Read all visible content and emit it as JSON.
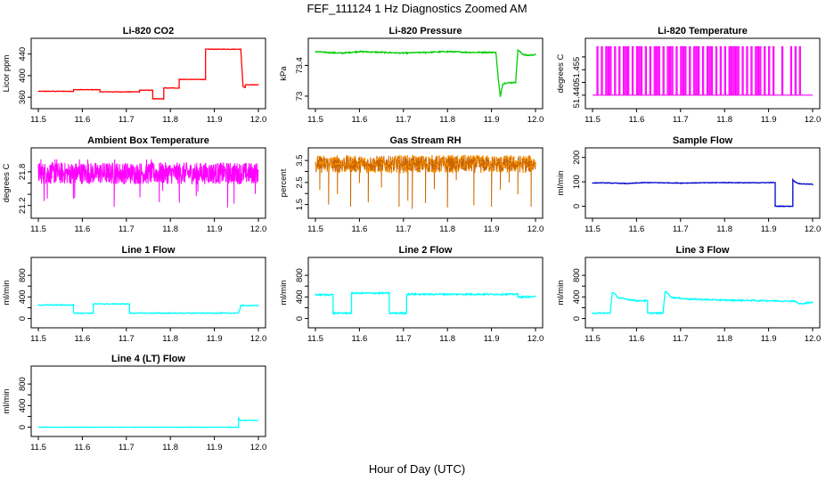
{
  "figure": {
    "title": "FEF_111124  1 Hz Diagnostics Zoomed AM",
    "xlabel": "Hour of Day (UTC)"
  },
  "chart_data": [
    {
      "id": "co2",
      "type": "line",
      "title": "Li-820 CO2",
      "ylabel": "Licor ppm",
      "color": "#ff0000",
      "xlim": [
        11.5,
        12.0
      ],
      "ylim": [
        352,
        456
      ],
      "yticks": [
        360,
        400,
        440
      ],
      "xticks": [
        11.5,
        11.6,
        11.7,
        11.8,
        11.9,
        12.0
      ],
      "noise": 0.5,
      "series": [
        {
          "name": "CO2",
          "x": [
            11.5,
            11.58,
            11.58,
            11.64,
            11.64,
            11.73,
            11.73,
            11.76,
            11.76,
            11.785,
            11.785,
            11.82,
            11.82,
            11.88,
            11.88,
            11.96,
            11.96,
            11.965,
            11.97,
            11.97,
            12.0
          ],
          "y": [
            371,
            371,
            374,
            374,
            370,
            370,
            373,
            373,
            357,
            357,
            377,
            377,
            393,
            393,
            449,
            449,
            449,
            380,
            378,
            383,
            383
          ]
        }
      ]
    },
    {
      "id": "pressure",
      "type": "line",
      "title": "Li-820 Pressure",
      "ylabel": "kPa",
      "color": "#00cc00",
      "xlim": [
        11.5,
        12.0
      ],
      "ylim": [
        72.93,
        73.66
      ],
      "yticks": [
        73.0,
        73.4
      ],
      "xticks": [
        11.5,
        11.6,
        11.7,
        11.8,
        11.9,
        12.0
      ],
      "noise": 0.008,
      "series": [
        {
          "name": "Pressure",
          "x": [
            11.5,
            11.52,
            11.56,
            11.6,
            11.65,
            11.7,
            11.75,
            11.8,
            11.85,
            11.9,
            11.91,
            11.915,
            11.92,
            11.925,
            11.93,
            11.955,
            11.96,
            11.97,
            11.98,
            12.0
          ],
          "y": [
            73.58,
            73.57,
            73.56,
            73.58,
            73.57,
            73.56,
            73.57,
            73.58,
            73.57,
            73.57,
            73.57,
            73.25,
            72.99,
            73.15,
            73.17,
            73.18,
            73.6,
            73.55,
            73.53,
            73.54
          ]
        }
      ]
    },
    {
      "id": "li820temp",
      "type": "line",
      "title": "Li-820 Temperature",
      "ylabel": "degrees C",
      "color": "#ff00ff",
      "xlim": [
        11.5,
        12.0
      ],
      "ylim": [
        51.4375,
        51.4595
      ],
      "yticks": [
        51.44,
        51.445,
        51.45,
        51.455
      ],
      "yticklabels": [
        "51.440",
        "",
        "51.455",
        ""
      ],
      "xticks": [
        11.5,
        11.6,
        11.7,
        11.8,
        11.9,
        12.0
      ],
      "series": [
        {
          "name": "Temperature",
          "low": 51.44,
          "high": 51.459,
          "spikes": [
            11.51,
            11.52,
            11.53,
            11.535,
            11.54,
            11.55,
            11.56,
            11.57,
            11.575,
            11.58,
            11.59,
            11.6,
            11.605,
            11.61,
            11.62,
            11.63,
            11.64,
            11.645,
            11.65,
            11.66,
            11.67,
            11.675,
            11.68,
            11.69,
            11.7,
            11.705,
            11.71,
            11.72,
            11.73,
            11.735,
            11.74,
            11.75,
            11.76,
            11.765,
            11.77,
            11.78,
            11.79,
            11.8,
            11.81,
            11.815,
            11.82,
            11.825,
            11.83,
            11.84,
            11.85,
            11.86,
            11.87,
            11.875,
            11.88,
            11.89,
            11.9,
            11.91,
            11.93,
            11.95,
            11.96,
            11.97
          ]
        }
      ]
    },
    {
      "id": "ambient",
      "type": "line",
      "title": "Ambient Box Temperature",
      "ylabel": "degrees C",
      "color": "#ff00ff",
      "xlim": [
        11.5,
        12.0
      ],
      "ylim": [
        21.1,
        22.1
      ],
      "yticks": [
        21.2,
        21.4,
        21.6,
        21.8
      ],
      "yticklabels": [
        "21.2",
        "",
        "",
        "21.8"
      ],
      "xticks": [
        11.5,
        11.6,
        11.7,
        11.8,
        11.9,
        12.0
      ],
      "series": [
        {
          "name": "Ambient",
          "base": 21.77,
          "band": [
            21.58,
            21.97
          ],
          "extremes": [
            21.15,
            22.02
          ]
        }
      ]
    },
    {
      "id": "rh",
      "type": "line",
      "title": "Gas Stream RH",
      "ylabel": "percent",
      "color": "#ff9900",
      "xlim": [
        11.5,
        12.0
      ],
      "ylim": [
        1.2,
        3.75
      ],
      "yticks": [
        1.5,
        2.0,
        2.5,
        3.0,
        3.5
      ],
      "yticklabels": [
        "1.5",
        "",
        "2.5",
        "",
        "3.5"
      ],
      "xticks": [
        11.5,
        11.6,
        11.7,
        11.8,
        11.9,
        12.0
      ],
      "series": [
        {
          "name": "RH",
          "base": 3.35,
          "band": [
            2.95,
            3.72
          ],
          "dips": [
            [
              11.51,
              2.2
            ],
            [
              11.53,
              1.5
            ],
            [
              11.55,
              2.0
            ],
            [
              11.58,
              1.4
            ],
            [
              11.6,
              2.5
            ],
            [
              11.62,
              1.6
            ],
            [
              11.65,
              2.3
            ],
            [
              11.69,
              1.4
            ],
            [
              11.71,
              1.7
            ],
            [
              11.72,
              1.3
            ],
            [
              11.75,
              1.6
            ],
            [
              11.77,
              2.2
            ],
            [
              11.8,
              1.4
            ],
            [
              11.82,
              2.6
            ],
            [
              11.86,
              1.5
            ],
            [
              11.9,
              1.4
            ],
            [
              11.92,
              2.2
            ],
            [
              11.94,
              2.5
            ],
            [
              11.96,
              2.0
            ],
            [
              11.99,
              1.4
            ]
          ]
        }
      ]
    },
    {
      "id": "sample",
      "type": "line",
      "title": "Sample Flow",
      "ylabel": "ml/min",
      "color": "#0000cc",
      "xlim": [
        11.5,
        12.0
      ],
      "ylim": [
        -20,
        210
      ],
      "yticks": [
        0,
        100,
        200
      ],
      "xticks": [
        11.5,
        11.6,
        11.7,
        11.8,
        11.9,
        12.0
      ],
      "noise": 1.2,
      "series": [
        {
          "name": "Sample",
          "x": [
            11.5,
            11.52,
            11.58,
            11.62,
            11.7,
            11.8,
            11.85,
            11.915,
            11.915,
            11.955,
            11.955,
            11.96,
            11.97,
            12.0
          ],
          "y": [
            95,
            96,
            93,
            97,
            95,
            97,
            96,
            97,
            0,
            0,
            108,
            100,
            92,
            90
          ]
        }
      ]
    },
    {
      "id": "line1",
      "type": "line",
      "title": "Line 1 Flow",
      "ylabel": "ml/min",
      "color": "#00ffff",
      "xlim": [
        11.5,
        12.0
      ],
      "ylim": [
        -40,
        1000
      ],
      "yticks": [
        0,
        200,
        400,
        600,
        800
      ],
      "yticklabels": [
        "0",
        "",
        "400",
        "",
        "800"
      ],
      "xticks": [
        11.5,
        11.6,
        11.7,
        11.8,
        11.9,
        12.0
      ],
      "noise": 8,
      "series": [
        {
          "name": "Line 1",
          "x": [
            11.5,
            11.58,
            11.58,
            11.625,
            11.625,
            11.707,
            11.707,
            11.955,
            11.96,
            12.0
          ],
          "y": [
            250,
            250,
            100,
            100,
            270,
            270,
            100,
            100,
            240,
            240
          ]
        }
      ]
    },
    {
      "id": "line2",
      "type": "line",
      "title": "Line 2 Flow",
      "ylabel": "ml/min",
      "color": "#00ffff",
      "xlim": [
        11.5,
        12.0
      ],
      "ylim": [
        -40,
        1000
      ],
      "yticks": [
        0,
        200,
        400,
        600,
        800
      ],
      "yticklabels": [
        "0",
        "",
        "400",
        "",
        "800"
      ],
      "xticks": [
        11.5,
        11.6,
        11.7,
        11.8,
        11.9,
        12.0
      ],
      "noise": 14,
      "series": [
        {
          "name": "Line 2",
          "x": [
            11.5,
            11.54,
            11.54,
            11.582,
            11.582,
            11.668,
            11.668,
            11.707,
            11.707,
            11.96,
            11.96,
            12.0
          ],
          "y": [
            440,
            440,
            100,
            100,
            470,
            470,
            100,
            100,
            450,
            450,
            400,
            400
          ]
        }
      ]
    },
    {
      "id": "line3",
      "type": "line",
      "title": "Line 3 Flow",
      "ylabel": "ml/min",
      "color": "#00ffff",
      "xlim": [
        11.5,
        12.0
      ],
      "ylim": [
        -40,
        1000
      ],
      "yticks": [
        0,
        200,
        400,
        600,
        800
      ],
      "yticklabels": [
        "0",
        "",
        "400",
        "",
        "800"
      ],
      "xticks": [
        11.5,
        11.6,
        11.7,
        11.8,
        11.9,
        12.0
      ],
      "noise": 12,
      "series": [
        {
          "name": "Line 3",
          "x": [
            11.5,
            11.54,
            11.545,
            11.56,
            11.6,
            11.625,
            11.625,
            11.66,
            11.665,
            11.68,
            11.72,
            11.8,
            11.9,
            11.96,
            11.97,
            12.0
          ],
          "y": [
            100,
            100,
            490,
            380,
            330,
            330,
            100,
            100,
            510,
            390,
            360,
            340,
            330,
            320,
            270,
            300
          ]
        }
      ]
    },
    {
      "id": "line4",
      "type": "line",
      "title": "Line 4 (LT) Flow",
      "ylabel": "ml/min",
      "color": "#00ffff",
      "xlim": [
        11.5,
        12.0
      ],
      "ylim": [
        -40,
        1000
      ],
      "yticks": [
        0,
        200,
        400,
        600,
        800
      ],
      "yticklabels": [
        "0",
        "",
        "400",
        "",
        "800"
      ],
      "xticks": [
        11.5,
        11.6,
        11.7,
        11.8,
        11.9,
        12.0
      ],
      "noise": 4,
      "series": [
        {
          "name": "Line 4",
          "x": [
            11.5,
            11.955,
            11.955,
            11.96,
            11.965,
            12.0
          ],
          "y": [
            0,
            0,
            170,
            120,
            125,
            125
          ]
        }
      ]
    }
  ]
}
